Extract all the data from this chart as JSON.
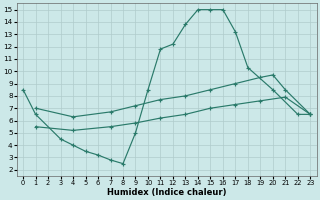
{
  "xlabel": "Humidex (Indice chaleur)",
  "xlim": [
    -0.5,
    23.5
  ],
  "ylim": [
    1.5,
    15.5
  ],
  "xticks": [
    0,
    1,
    2,
    3,
    4,
    5,
    6,
    7,
    8,
    9,
    10,
    11,
    12,
    13,
    14,
    15,
    16,
    17,
    18,
    19,
    20,
    21,
    22,
    23
  ],
  "yticks": [
    2,
    3,
    4,
    5,
    6,
    7,
    8,
    9,
    10,
    11,
    12,
    13,
    14,
    15
  ],
  "background_color": "#cce8e8",
  "grid_color": "#b0cccc",
  "line_color": "#2a7a6a",
  "line1": {
    "x": [
      0,
      1,
      3,
      4,
      5,
      6,
      7,
      8,
      9,
      10,
      11,
      12,
      13,
      14,
      15,
      16,
      17,
      18,
      20,
      22,
      23
    ],
    "y": [
      8.5,
      6.5,
      4.5,
      4.0,
      3.5,
      3.2,
      2.8,
      2.5,
      5.0,
      8.5,
      11.8,
      12.2,
      13.8,
      15.0,
      15.0,
      15.0,
      13.2,
      10.3,
      8.5,
      6.5,
      6.5
    ]
  },
  "line2": {
    "x": [
      1,
      23
    ],
    "y": [
      7.0,
      6.5
    ]
  },
  "line3": {
    "x": [
      1,
      23
    ],
    "y": [
      5.5,
      6.5
    ]
  },
  "line2_markers_x": [
    1,
    4,
    7,
    9,
    11,
    13,
    15,
    17,
    19,
    20,
    21,
    23
  ],
  "line2_markers_y": [
    7.0,
    6.3,
    6.7,
    7.2,
    7.7,
    8.0,
    8.5,
    9.0,
    9.5,
    9.7,
    8.5,
    6.5
  ],
  "line3_markers_x": [
    1,
    4,
    7,
    9,
    11,
    13,
    15,
    17,
    19,
    21,
    23
  ],
  "line3_markers_y": [
    5.5,
    5.2,
    5.5,
    5.8,
    6.2,
    6.5,
    7.0,
    7.3,
    7.6,
    7.9,
    6.5
  ]
}
